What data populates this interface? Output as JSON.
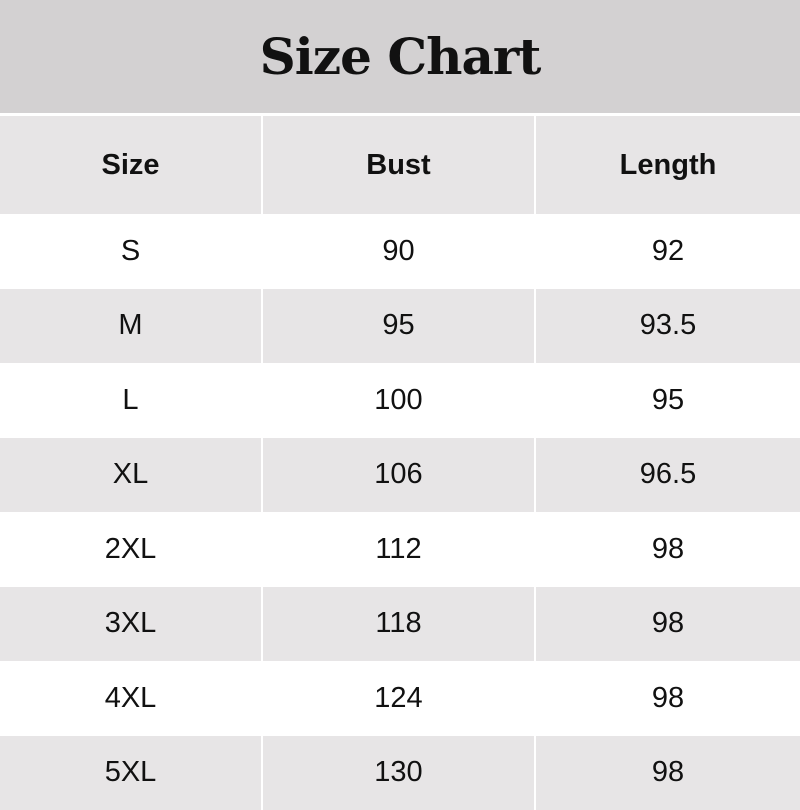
{
  "chart_data": {
    "type": "table",
    "title": "Size Chart",
    "columns": [
      "Size",
      "Bust",
      "Length"
    ],
    "rows": [
      [
        "S",
        "90",
        "92"
      ],
      [
        "M",
        "95",
        "93.5"
      ],
      [
        "L",
        "100",
        "95"
      ],
      [
        "XL",
        "106",
        "96.5"
      ],
      [
        "2XL",
        "112",
        "98"
      ],
      [
        "3XL",
        "118",
        "98"
      ],
      [
        "4XL",
        "124",
        "98"
      ],
      [
        "5XL",
        "130",
        "98"
      ]
    ]
  },
  "colors": {
    "title_bg": "#d3d1d2",
    "header_bg": "#e7e5e6",
    "alt_row_bg": "#e7e5e6"
  }
}
